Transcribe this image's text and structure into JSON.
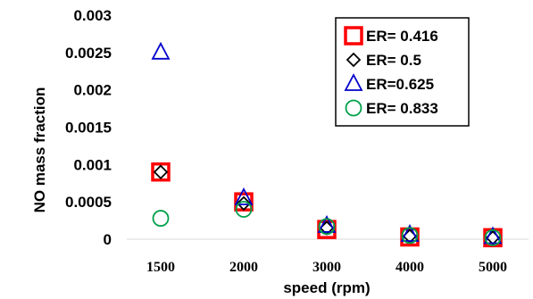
{
  "chart_data": {
    "type": "scatter",
    "xlabel": "speed (rpm)",
    "ylabel": "NO mass fraction",
    "categories": [
      "1500",
      "2000",
      "3000",
      "4000",
      "5000"
    ],
    "ylim": [
      0,
      0.003
    ],
    "yticks": [
      "0",
      "0.0005",
      "0.001",
      "0.0015",
      "0.002",
      "0.0025",
      "0.003"
    ],
    "grid": false,
    "legend_position": "top-right",
    "series": [
      {
        "name": "ER= 0.416",
        "marker": "square",
        "color": "#ff0000",
        "values": [
          0.0009,
          0.0005,
          0.00013,
          3e-05,
          2e-05
        ]
      },
      {
        "name": "ER= 0.5",
        "marker": "diamond",
        "color": "#000000",
        "values": [
          0.0009,
          0.00048,
          0.00015,
          4e-05,
          2e-05
        ]
      },
      {
        "name": "ER=0.625",
        "marker": "triangle",
        "color": "#0000cc",
        "values": [
          0.0025,
          0.00055,
          0.00018,
          6e-05,
          3e-05
        ]
      },
      {
        "name": "ER= 0.833",
        "marker": "circle",
        "color": "#00a04a",
        "values": [
          0.00028,
          0.0004,
          0.00017,
          5e-05,
          2e-05
        ]
      }
    ]
  }
}
